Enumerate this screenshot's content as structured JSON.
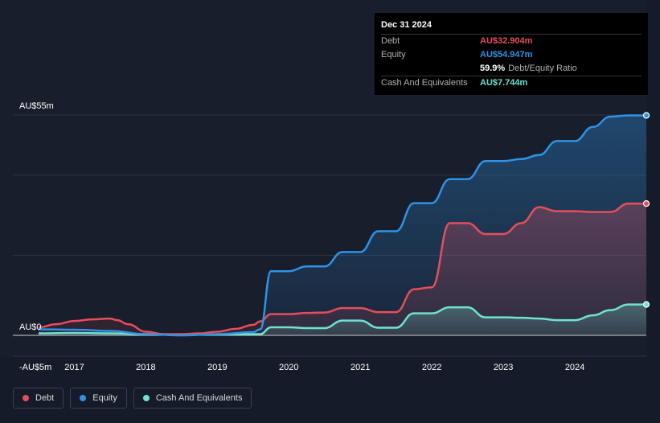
{
  "tooltip": {
    "date": "Dec 31 2024",
    "rows": [
      {
        "label": "Debt",
        "value": "AU$32.904m",
        "color": "#e64e5c"
      },
      {
        "label": "Equity",
        "value": "AU$54.947m",
        "color": "#2e93e6"
      },
      {
        "label": "",
        "value": "59.9%",
        "suffix": "Debt/Equity Ratio",
        "color": "#ffffff"
      },
      {
        "label": "Cash And Equivalents",
        "value": "AU$7.744m",
        "color": "#6fe3d0"
      }
    ]
  },
  "legend": [
    {
      "label": "Debt",
      "color": "#e64e5c"
    },
    {
      "label": "Equity",
      "color": "#2e93e6"
    },
    {
      "label": "Cash And Equivalents",
      "color": "#6fe3d0"
    }
  ],
  "chart_data": {
    "type": "area",
    "y_tick_labels": [
      "AU$55m",
      "AU$0",
      "-AU$5m"
    ],
    "ylim": [
      -5,
      55
    ],
    "xlim": [
      2016.5,
      2025.0
    ],
    "x_tick_labels": [
      "2017",
      "2018",
      "2019",
      "2020",
      "2021",
      "2022",
      "2023",
      "2024"
    ],
    "x_tick_values": [
      2017,
      2018,
      2019,
      2020,
      2021,
      2022,
      2023,
      2024
    ],
    "gridlines": [
      55,
      40,
      20,
      0
    ],
    "series": [
      {
        "name": "Debt",
        "color": "#e64e5c",
        "x": [
          2016.5,
          2016.75,
          2017.0,
          2017.25,
          2017.5,
          2017.6,
          2017.75,
          2018.0,
          2018.25,
          2018.5,
          2018.75,
          2019.0,
          2019.25,
          2019.5,
          2019.6,
          2019.75,
          2020.0,
          2020.25,
          2020.5,
          2020.75,
          2021.0,
          2021.25,
          2021.5,
          2021.75,
          2022.0,
          2022.25,
          2022.5,
          2022.75,
          2023.0,
          2023.25,
          2023.5,
          2023.75,
          2024.0,
          2024.25,
          2024.5,
          2024.75,
          2025.0
        ],
        "values": [
          2.0,
          2.8,
          3.6,
          4.0,
          4.2,
          3.8,
          2.8,
          0.9,
          0.3,
          0.3,
          0.5,
          0.9,
          1.6,
          2.6,
          3.5,
          5.3,
          5.3,
          5.6,
          5.7,
          6.8,
          6.8,
          5.8,
          5.8,
          11.5,
          12.0,
          28.0,
          28.0,
          25.3,
          25.3,
          28.0,
          32.0,
          31.0,
          31.0,
          30.8,
          30.8,
          32.9,
          32.9
        ]
      },
      {
        "name": "Equity",
        "color": "#2e93e6",
        "x": [
          2016.5,
          2017.0,
          2017.5,
          2018.0,
          2018.5,
          2019.0,
          2019.5,
          2019.6,
          2019.75,
          2020.0,
          2020.25,
          2020.5,
          2020.75,
          2021.0,
          2021.25,
          2021.5,
          2021.75,
          2022.0,
          2022.25,
          2022.5,
          2022.75,
          2023.0,
          2023.25,
          2023.5,
          2023.75,
          2024.0,
          2024.25,
          2024.5,
          2024.75,
          2025.0
        ],
        "values": [
          1.5,
          1.4,
          1.1,
          0.3,
          0.0,
          0.3,
          0.8,
          1.5,
          16.0,
          16.0,
          17.2,
          17.2,
          20.8,
          20.8,
          26.0,
          26.0,
          33.0,
          33.0,
          39.0,
          39.0,
          43.5,
          43.5,
          44.0,
          45.0,
          48.5,
          48.5,
          52.0,
          54.6,
          54.9,
          54.9
        ]
      },
      {
        "name": "Cash And Equivalents",
        "color": "#6fe3d0",
        "x": [
          2016.5,
          2017.0,
          2017.5,
          2018.0,
          2018.5,
          2019.0,
          2019.5,
          2019.6,
          2019.75,
          2020.0,
          2020.25,
          2020.5,
          2020.75,
          2021.0,
          2021.25,
          2021.5,
          2021.75,
          2022.0,
          2022.25,
          2022.5,
          2022.75,
          2023.0,
          2023.25,
          2023.5,
          2023.75,
          2024.0,
          2024.25,
          2024.5,
          2024.75,
          2025.0
        ],
        "values": [
          0.5,
          0.6,
          0.5,
          0.3,
          0.1,
          0.2,
          0.3,
          0.3,
          2.0,
          2.0,
          1.8,
          1.8,
          3.7,
          3.7,
          1.9,
          1.9,
          5.5,
          5.5,
          7.0,
          7.0,
          4.5,
          4.5,
          4.4,
          4.2,
          3.8,
          3.8,
          5.0,
          6.3,
          7.7,
          7.7
        ]
      }
    ]
  }
}
